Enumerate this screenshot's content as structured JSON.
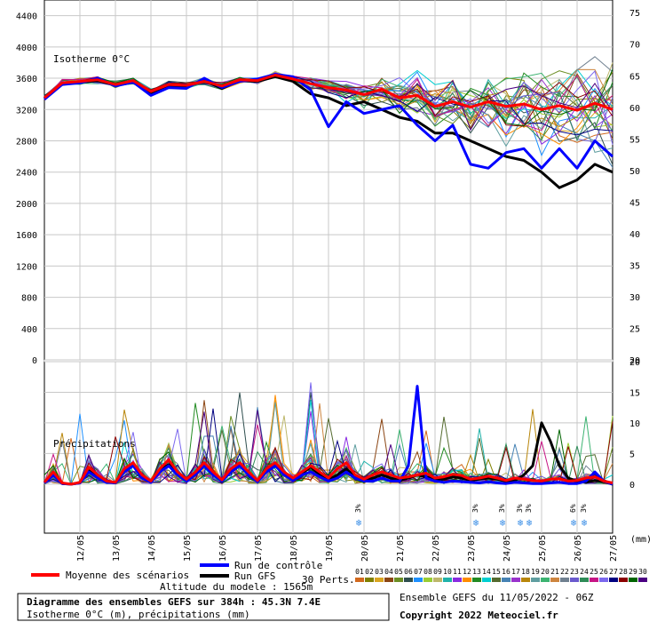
{
  "chart_data": [
    {
      "type": "line",
      "panel": "isotherm",
      "label": "Isotherme 0°C",
      "x_dates": [
        "12/05",
        "13/05",
        "14/05",
        "15/05",
        "16/05",
        "17/05",
        "18/05",
        "19/05",
        "20/05",
        "21/05",
        "22/05",
        "23/05",
        "24/05",
        "25/05",
        "26/05",
        "27/05"
      ],
      "ylim_left": [
        0,
        4600
      ],
      "yticks_left": [
        0,
        400,
        800,
        1200,
        1600,
        2000,
        2400,
        2800,
        3200,
        3600,
        4000,
        4400
      ],
      "ylim_right": [
        20,
        77
      ],
      "yticks_right": [
        20,
        25,
        30,
        35,
        40,
        45,
        50,
        55,
        60,
        65,
        70,
        75
      ],
      "days": [
        11.0,
        11.5,
        12.0,
        12.5,
        13.0,
        13.5,
        14.0,
        14.5,
        15.0,
        15.5,
        16.0,
        16.5,
        17.0,
        17.5,
        18.0,
        18.5,
        19.0,
        19.5,
        20.0,
        20.5,
        21.0,
        21.5,
        22.0,
        22.5,
        23.0,
        23.5,
        24.0,
        24.5,
        25.0,
        25.5,
        26.0,
        26.5,
        27.0
      ],
      "series": [
        {
          "name": "Moyenne des scénarios",
          "color": "#ff0000",
          "width": 3,
          "values": [
            3350,
            3540,
            3560,
            3580,
            3520,
            3570,
            3430,
            3520,
            3510,
            3560,
            3500,
            3580,
            3570,
            3640,
            3590,
            3530,
            3480,
            3450,
            3390,
            3460,
            3350,
            3380,
            3240,
            3300,
            3230,
            3300,
            3240,
            3270,
            3200,
            3250,
            3190,
            3280,
            3200
          ]
        },
        {
          "name": "Run de contrôle",
          "color": "#0000ff",
          "width": 3,
          "values": [
            3330,
            3520,
            3540,
            3600,
            3500,
            3550,
            3380,
            3480,
            3470,
            3600,
            3480,
            3560,
            3590,
            3650,
            3620,
            3450,
            2980,
            3300,
            3150,
            3200,
            3250,
            3000,
            2800,
            3000,
            2500,
            2450,
            2650,
            2700,
            2450,
            2700,
            2450,
            2800,
            2600
          ]
        },
        {
          "name": "Run GFS",
          "color": "#000000",
          "width": 3,
          "values": [
            3340,
            3530,
            3550,
            3570,
            3510,
            3560,
            3410,
            3510,
            3490,
            3570,
            3470,
            3570,
            3560,
            3620,
            3560,
            3400,
            3350,
            3250,
            3300,
            3200,
            3100,
            3050,
            2900,
            2900,
            2800,
            2700,
            2600,
            2550,
            2400,
            2200,
            2300,
            2500,
            2400
          ]
        }
      ]
    },
    {
      "type": "line",
      "panel": "precip",
      "label": "Précipitations",
      "unit": "(mm)",
      "ylim": [
        -8,
        20
      ],
      "yticks": [
        0,
        5,
        10,
        15,
        20
      ],
      "days": [
        11.0,
        11.25,
        11.5,
        11.75,
        12.0,
        12.25,
        12.5,
        12.75,
        13.0,
        13.25,
        13.5,
        13.75,
        14.0,
        14.25,
        14.5,
        14.75,
        15.0,
        15.25,
        15.5,
        15.75,
        16.0,
        16.25,
        16.5,
        16.75,
        17.0,
        17.25,
        17.5,
        17.75,
        18.0,
        18.25,
        18.5,
        18.75,
        19.0,
        19.25,
        19.5,
        19.75,
        20.0,
        20.25,
        20.5,
        20.75,
        21.0,
        21.25,
        21.5,
        21.75,
        22.0,
        22.25,
        22.5,
        22.75,
        23.0,
        23.25,
        23.5,
        23.75,
        24.0,
        24.25,
        24.5,
        24.75,
        25.0,
        25.25,
        25.5,
        25.75,
        26.0,
        26.25,
        26.5,
        26.75,
        27.0
      ],
      "series": [
        {
          "name": "Moyenne des scénarios",
          "color": "#ff0000",
          "width": 3,
          "values": [
            0.3,
            2.0,
            0.2,
            0.0,
            0.3,
            2.8,
            1.5,
            0.5,
            0.3,
            2.5,
            3.5,
            1.5,
            0.5,
            2.5,
            4.0,
            2.0,
            0.8,
            2.0,
            3.5,
            2.0,
            0.7,
            2.5,
            3.5,
            2.0,
            0.6,
            2.5,
            3.5,
            2.0,
            1.0,
            2.0,
            3.0,
            2.0,
            1.0,
            2.5,
            3.5,
            1.5,
            0.8,
            1.5,
            2.0,
            1.5,
            1.0,
            1.2,
            1.5,
            1.8,
            1.0,
            1.2,
            1.6,
            1.4,
            0.8,
            1.0,
            1.3,
            1.0,
            0.6,
            1.0,
            0.8,
            0.6,
            0.5,
            0.8,
            0.9,
            0.5,
            0.6,
            1.0,
            1.2,
            0.5,
            0.2
          ]
        },
        {
          "name": "Run de contrôle",
          "color": "#0000ff",
          "width": 3,
          "values": [
            0.2,
            1.5,
            0.1,
            0.0,
            0.2,
            2.0,
            1.0,
            0.3,
            0.2,
            2.0,
            3.0,
            1.0,
            0.3,
            2.0,
            3.0,
            1.5,
            0.5,
            1.5,
            3.0,
            1.5,
            0.5,
            2.0,
            3.0,
            1.5,
            0.4,
            2.0,
            3.0,
            1.5,
            0.6,
            1.5,
            2.0,
            1.2,
            0.5,
            1.0,
            2.0,
            1.0,
            0.5,
            0.5,
            1.0,
            0.5,
            0.5,
            3.0,
            16.0,
            1.0,
            0.5,
            0.3,
            0.5,
            0.4,
            0.3,
            0.2,
            0.4,
            0.2,
            0.1,
            0.3,
            0.2,
            0.1,
            0.1,
            0.2,
            0.3,
            0.1,
            0.1,
            0.5,
            2.0,
            0.5,
            0.0
          ]
        },
        {
          "name": "Run GFS",
          "color": "#000000",
          "width": 3,
          "values": [
            0.2,
            1.8,
            0.1,
            0.0,
            0.2,
            2.2,
            1.2,
            0.4,
            0.2,
            2.2,
            3.0,
            1.2,
            0.4,
            2.2,
            3.2,
            1.6,
            0.6,
            1.6,
            3.0,
            1.6,
            0.5,
            2.2,
            3.2,
            1.6,
            0.4,
            2.2,
            3.2,
            1.6,
            0.8,
            1.8,
            2.8,
            1.6,
            0.7,
            1.5,
            2.5,
            1.2,
            0.6,
            1.0,
            1.5,
            1.0,
            0.6,
            1.0,
            1.5,
            1.2,
            0.8,
            0.8,
            1.2,
            1.0,
            0.6,
            0.8,
            1.0,
            0.8,
            0.5,
            0.6,
            1.5,
            3.0,
            10.0,
            7.0,
            3.0,
            1.0,
            0.5,
            0.3,
            0.6,
            0.4,
            0.0
          ]
        }
      ],
      "snow_markers": [
        {
          "day": 19.85,
          "label": "3%"
        },
        {
          "day": 23.15,
          "label": "3%"
        },
        {
          "day": 23.9,
          "label": "3%"
        },
        {
          "day": 24.4,
          "label": "3%"
        },
        {
          "day": 24.65,
          "label": "3%"
        },
        {
          "day": 25.9,
          "label": "6%"
        },
        {
          "day": 26.2,
          "label": "3%"
        }
      ]
    }
  ],
  "legend": {
    "mean": "Moyenne des scénarios",
    "control": "Run de contrôle",
    "gfs": "Run GFS",
    "perts": "30 Perts.",
    "members": [
      "01",
      "02",
      "03",
      "04",
      "05",
      "06",
      "07",
      "08",
      "09",
      "10",
      "11",
      "12",
      "13",
      "14",
      "15",
      "16",
      "17",
      "18",
      "19",
      "20",
      "21",
      "22",
      "23",
      "24",
      "25",
      "26",
      "27",
      "28",
      "29",
      "30"
    ],
    "member_colors": [
      "#d2691e",
      "#808000",
      "#daa520",
      "#8b4513",
      "#6b8e23",
      "#2f4f4f",
      "#1e90ff",
      "#9acd32",
      "#bdb76b",
      "#20b2aa",
      "#8a2be2",
      "#ff8c00",
      "#228b22",
      "#00ced1",
      "#556b2f",
      "#4682b4",
      "#9932cc",
      "#b8860b",
      "#5f9ea0",
      "#3cb371",
      "#cd853f",
      "#708090",
      "#6a5acd",
      "#2e8b57",
      "#c71585",
      "#7b68ee",
      "#000080",
      "#8b0000",
      "#006400",
      "#4b0082"
    ]
  },
  "footer": {
    "altitude": "Altitude du modele : 1565m",
    "title": "Diagramme des ensembles GEFS sur 384h : 45.3N 7.4E",
    "subtitle": "Isotherme 0°C (m), précipitations (mm)",
    "run": "Ensemble GEFS du 11/05/2022 - 06Z",
    "copyright": "Copyright 2022 Meteociel.fr"
  }
}
